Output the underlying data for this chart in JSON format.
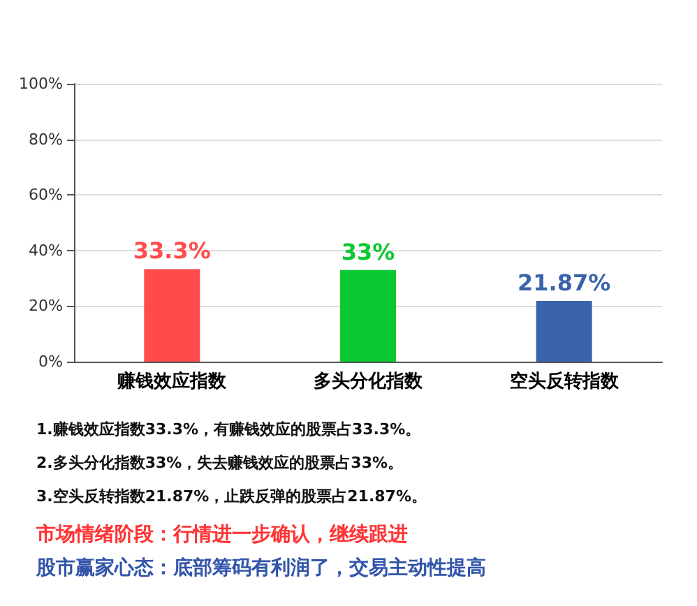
{
  "chart_data": {
    "type": "bar",
    "categories": [
      "赚钱效应指数",
      "多头分化指数",
      "空头反转指数"
    ],
    "values": [
      33.3,
      33,
      21.87
    ],
    "colors": [
      "#ff4b4b",
      "#0ac832",
      "#3a64aa"
    ],
    "value_labels": [
      "33.3%",
      "33%",
      "21.87%"
    ],
    "ylim": [
      0,
      100
    ],
    "yticks": [
      {
        "value": 0,
        "label": "0%"
      },
      {
        "value": 20,
        "label": "20%"
      },
      {
        "value": 40,
        "label": "40%"
      },
      {
        "value": 60,
        "label": "60%"
      },
      {
        "value": 80,
        "label": "80%"
      },
      {
        "value": 100,
        "label": "100%"
      }
    ],
    "grid": "y",
    "annotations": [
      "1.赚钱效应指数33.3%，有赚钱效应的股票占33.3%。",
      "2.多头分化指数33%，失去赚钱效应的股票占33%。",
      "3.空头反转指数21.87%，止跌反弹的股票占21.87%。",
      "市场情绪阶段：行情进一步确认，继续跟进",
      "股市赢家心态：底部筹码有利润了，交易主动性提高"
    ]
  }
}
